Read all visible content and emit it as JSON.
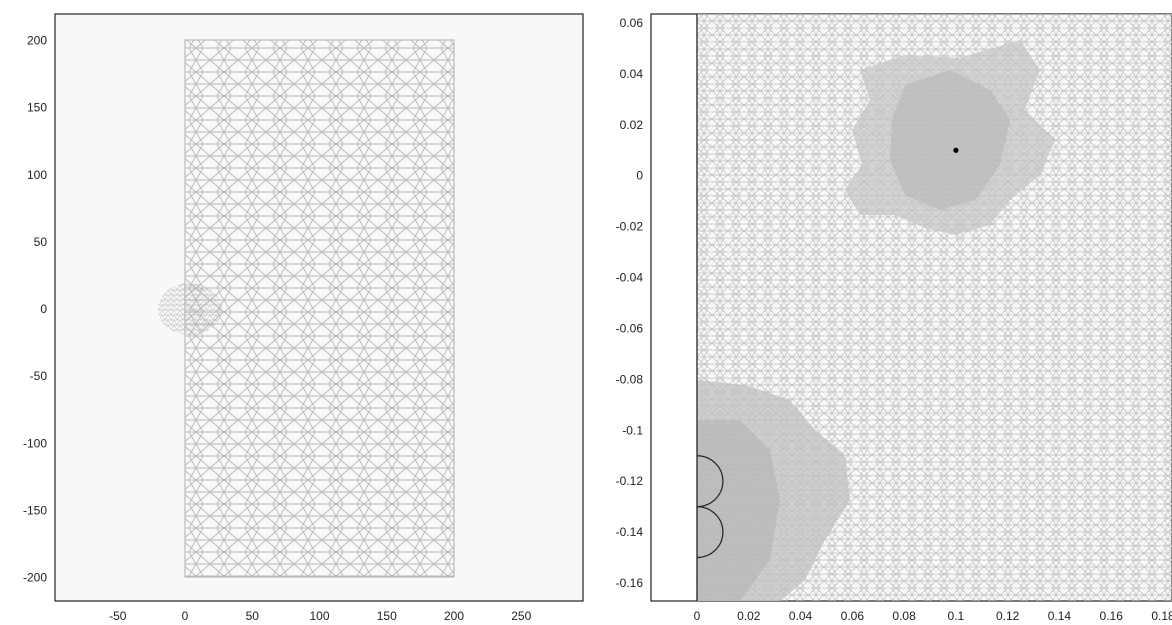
{
  "colors": {
    "plot_bg": "#f7f8fa",
    "frame": "#222222",
    "mesh": "#b9b9b9",
    "dense_fill": "#c4c4c4",
    "mesh_dense": "#aaaaaa"
  },
  "left_panel": {
    "x_ticks": [
      "-50",
      "0",
      "50",
      "100",
      "150",
      "200",
      "250"
    ],
    "y_ticks": [
      "200",
      "150",
      "100",
      "50",
      "0",
      "-50",
      "-100",
      "-150",
      "-200"
    ],
    "x_range": [
      -100,
      300
    ],
    "y_range": [
      -220,
      220
    ],
    "domain_rect": {
      "x": [
        0,
        200
      ],
      "y": [
        -200,
        200
      ]
    }
  },
  "right_panel": {
    "x_ticks": [
      "0",
      "0.02",
      "0.04",
      "0.06",
      "0.08",
      "0.1",
      "0.12",
      "0.14",
      "0.16",
      "0.18"
    ],
    "y_ticks": [
      "0.06",
      "0.04",
      "0.02",
      "0",
      "-0.02",
      "-0.04",
      "-0.06",
      "-0.08",
      "-0.1",
      "-0.12",
      "-0.14",
      "-0.16"
    ],
    "point": {
      "x": 0.1,
      "y": 0.01
    },
    "semicircles": [
      {
        "center_y": -0.12,
        "radius": 0.01
      },
      {
        "center_y": -0.14,
        "radius": 0.01
      }
    ]
  }
}
